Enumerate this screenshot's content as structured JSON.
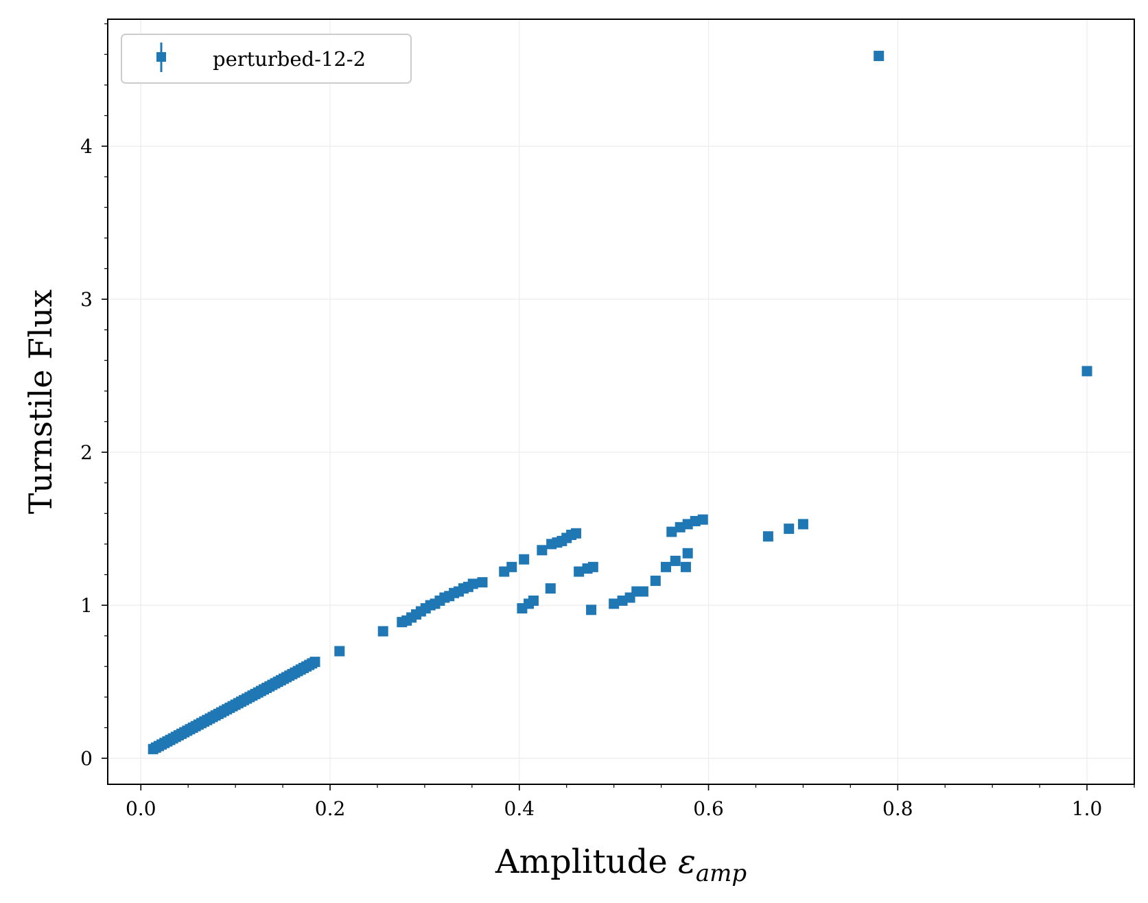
{
  "chart_data": {
    "type": "scatter",
    "title": "",
    "xlabel": "Amplitude",
    "xlabel_symbol": "ε",
    "xlabel_subscript": "amp",
    "ylabel": "Turnstile Flux",
    "xlim": [
      -0.035,
      1.05
    ],
    "ylim": [
      -0.17,
      4.83
    ],
    "xticks": [
      0.0,
      0.2,
      0.4,
      0.6,
      0.8,
      1.0
    ],
    "xtick_labels": [
      "0.0",
      "0.2",
      "0.4",
      "0.6",
      "0.8",
      "1.0"
    ],
    "yticks": [
      0,
      1,
      2,
      3,
      4
    ],
    "ytick_labels": [
      "0",
      "1",
      "2",
      "3",
      "4"
    ],
    "grid": true,
    "legend": {
      "position": "top-left",
      "entries": [
        "perturbed-12-2"
      ]
    },
    "marker": "square",
    "color": "#1f77b4",
    "series": [
      {
        "name": "perturbed-12-2",
        "points": [
          [
            0.013,
            0.06
          ],
          [
            0.016,
            0.07
          ],
          [
            0.019,
            0.08
          ],
          [
            0.022,
            0.09
          ],
          [
            0.025,
            0.1
          ],
          [
            0.028,
            0.11
          ],
          [
            0.031,
            0.12
          ],
          [
            0.034,
            0.13
          ],
          [
            0.037,
            0.14
          ],
          [
            0.04,
            0.15
          ],
          [
            0.043,
            0.16
          ],
          [
            0.046,
            0.17
          ],
          [
            0.049,
            0.18
          ],
          [
            0.052,
            0.19
          ],
          [
            0.055,
            0.2
          ],
          [
            0.058,
            0.21
          ],
          [
            0.061,
            0.22
          ],
          [
            0.064,
            0.23
          ],
          [
            0.067,
            0.24
          ],
          [
            0.07,
            0.25
          ],
          [
            0.073,
            0.26
          ],
          [
            0.076,
            0.27
          ],
          [
            0.079,
            0.28
          ],
          [
            0.082,
            0.29
          ],
          [
            0.085,
            0.3
          ],
          [
            0.088,
            0.31
          ],
          [
            0.091,
            0.32
          ],
          [
            0.094,
            0.33
          ],
          [
            0.097,
            0.34
          ],
          [
            0.1,
            0.35
          ],
          [
            0.103,
            0.36
          ],
          [
            0.106,
            0.37
          ],
          [
            0.109,
            0.38
          ],
          [
            0.112,
            0.39
          ],
          [
            0.115,
            0.4
          ],
          [
            0.118,
            0.41
          ],
          [
            0.121,
            0.42
          ],
          [
            0.124,
            0.43
          ],
          [
            0.127,
            0.44
          ],
          [
            0.13,
            0.45
          ],
          [
            0.133,
            0.46
          ],
          [
            0.136,
            0.47
          ],
          [
            0.139,
            0.48
          ],
          [
            0.142,
            0.49
          ],
          [
            0.145,
            0.5
          ],
          [
            0.148,
            0.51
          ],
          [
            0.151,
            0.52
          ],
          [
            0.154,
            0.53
          ],
          [
            0.157,
            0.54
          ],
          [
            0.16,
            0.55
          ],
          [
            0.163,
            0.56
          ],
          [
            0.166,
            0.57
          ],
          [
            0.169,
            0.58
          ],
          [
            0.172,
            0.59
          ],
          [
            0.175,
            0.6
          ],
          [
            0.178,
            0.61
          ],
          [
            0.181,
            0.62
          ],
          [
            0.184,
            0.63
          ],
          [
            0.21,
            0.7
          ],
          [
            0.256,
            0.83
          ],
          [
            0.276,
            0.89
          ],
          [
            0.281,
            0.9
          ],
          [
            0.286,
            0.92
          ],
          [
            0.291,
            0.94
          ],
          [
            0.296,
            0.96
          ],
          [
            0.301,
            0.98
          ],
          [
            0.306,
            1.0
          ],
          [
            0.311,
            1.01
          ],
          [
            0.316,
            1.03
          ],
          [
            0.321,
            1.05
          ],
          [
            0.326,
            1.06
          ],
          [
            0.331,
            1.08
          ],
          [
            0.336,
            1.09
          ],
          [
            0.341,
            1.11
          ],
          [
            0.346,
            1.12
          ],
          [
            0.351,
            1.14
          ],
          [
            0.361,
            1.15
          ],
          [
            0.384,
            1.22
          ],
          [
            0.392,
            1.25
          ],
          [
            0.405,
            1.3
          ],
          [
            0.424,
            1.36
          ],
          [
            0.434,
            1.4
          ],
          [
            0.44,
            1.41
          ],
          [
            0.445,
            1.42
          ],
          [
            0.45,
            1.44
          ],
          [
            0.455,
            1.46
          ],
          [
            0.46,
            1.47
          ],
          [
            0.403,
            0.98
          ],
          [
            0.41,
            1.01
          ],
          [
            0.415,
            1.03
          ],
          [
            0.433,
            1.11
          ],
          [
            0.463,
            1.22
          ],
          [
            0.472,
            1.24
          ],
          [
            0.478,
            1.25
          ],
          [
            0.476,
            0.97
          ],
          [
            0.5,
            1.01
          ],
          [
            0.509,
            1.03
          ],
          [
            0.517,
            1.05
          ],
          [
            0.524,
            1.09
          ],
          [
            0.531,
            1.09
          ],
          [
            0.544,
            1.16
          ],
          [
            0.555,
            1.25
          ],
          [
            0.565,
            1.29
          ],
          [
            0.576,
            1.25
          ],
          [
            0.578,
            1.34
          ],
          [
            0.561,
            1.48
          ],
          [
            0.57,
            1.51
          ],
          [
            0.578,
            1.53
          ],
          [
            0.586,
            1.55
          ],
          [
            0.594,
            1.56
          ],
          [
            0.663,
            1.45
          ],
          [
            0.685,
            1.5
          ],
          [
            0.7,
            1.53
          ],
          [
            0.78,
            4.59
          ],
          [
            1.0,
            2.53
          ]
        ]
      }
    ]
  }
}
